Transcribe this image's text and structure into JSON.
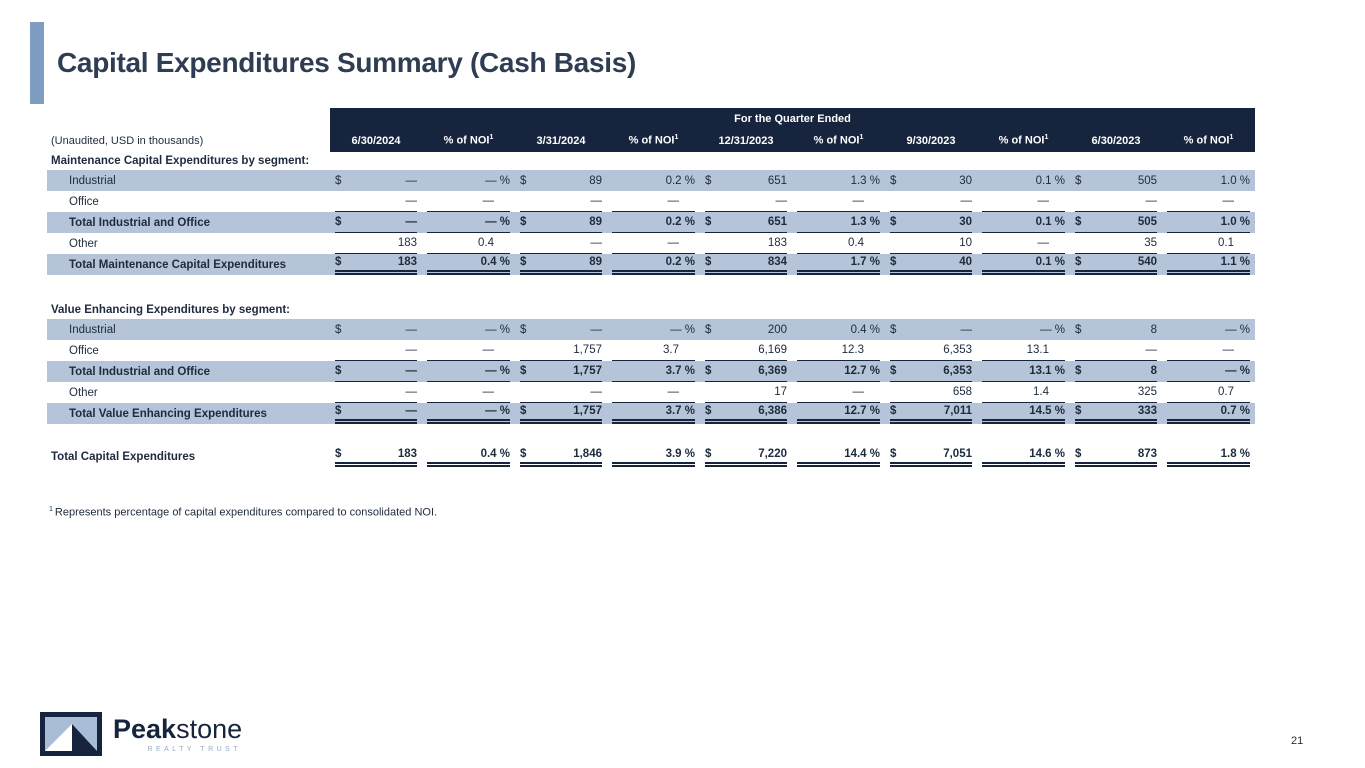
{
  "title": "Capital Expenditures Summary (Cash Basis)",
  "page": {
    "number": "21"
  },
  "colors": {
    "navy": "#16243e",
    "stripe": "#b5c4d9",
    "accent_bar": "#7f9cc1",
    "title_text": "#2e3d52",
    "logo_subtitle": "#93a9c5"
  },
  "footnote": {
    "sup": "1",
    "text": "Represents percentage of capital expenditures compared to consolidated NOI."
  },
  "logo": {
    "brand_bold": "Peak",
    "brand_light": "stone",
    "subtitle": "REALTY TRUST",
    "mark": "mountain-logo-icon"
  },
  "table": {
    "unaudited_note": "(Unaudited, USD in thousands)",
    "quarter_banner": "For the Quarter Ended",
    "columns": [
      {
        "label": "6/30/2024"
      },
      {
        "label": "% of NOI",
        "sup": "1"
      },
      {
        "label": "3/31/2024"
      },
      {
        "label": "% of NOI",
        "sup": "1"
      },
      {
        "label": "12/31/2023"
      },
      {
        "label": "% of NOI",
        "sup": "1"
      },
      {
        "label": "9/30/2023"
      },
      {
        "label": "% of NOI",
        "sup": "1"
      },
      {
        "label": "6/30/2023"
      },
      {
        "label": "% of NOI",
        "sup": "1"
      }
    ],
    "sections": [
      {
        "heading": "Maintenance Capital Expenditures by segment:",
        "rows": [
          {
            "label": "Industrial",
            "indent": true,
            "shaded": true,
            "bold": false,
            "dollar": true,
            "underline": "none",
            "values": [
              "—",
              "—",
              "89",
              "0.2",
              "651",
              "1.3",
              "30",
              "0.1",
              "505",
              "1.0"
            ]
          },
          {
            "label": "Office",
            "indent": true,
            "shaded": false,
            "bold": false,
            "dollar": false,
            "underline": "single",
            "values": [
              "—",
              "—",
              "—",
              "—",
              "—",
              "—",
              "—",
              "—",
              "—",
              "—"
            ]
          },
          {
            "label": "Total Industrial and Office",
            "indent": true,
            "shaded": true,
            "bold": true,
            "dollar": true,
            "underline": "single",
            "values": [
              "—",
              "—",
              "89",
              "0.2",
              "651",
              "1.3",
              "30",
              "0.1",
              "505",
              "1.0"
            ]
          },
          {
            "label": "Other",
            "indent": true,
            "shaded": false,
            "bold": false,
            "dollar": false,
            "underline": "single",
            "values": [
              "183",
              "0.4",
              "—",
              "—",
              "183",
              "0.4",
              "10",
              "—",
              "35",
              "0.1"
            ]
          },
          {
            "label": "Total Maintenance Capital Expenditures",
            "indent": true,
            "shaded": true,
            "bold": true,
            "dollar": true,
            "underline": "double",
            "values": [
              "183",
              "0.4",
              "89",
              "0.2",
              "834",
              "1.7",
              "40",
              "0.1",
              "540",
              "1.1"
            ]
          }
        ]
      },
      {
        "heading": "Value Enhancing Expenditures by segment:",
        "rows": [
          {
            "label": "Industrial",
            "indent": true,
            "shaded": true,
            "bold": false,
            "dollar": true,
            "underline": "none",
            "values": [
              "—",
              "—",
              "—",
              "—",
              "200",
              "0.4",
              "—",
              "—",
              "8",
              "—"
            ]
          },
          {
            "label": "Office",
            "indent": true,
            "shaded": false,
            "bold": false,
            "dollar": false,
            "underline": "single",
            "values": [
              "—",
              "—",
              "1,757",
              "3.7",
              "6,169",
              "12.3",
              "6,353",
              "13.1",
              "—",
              "—"
            ]
          },
          {
            "label": "Total Industrial and Office",
            "indent": true,
            "shaded": true,
            "bold": true,
            "dollar": true,
            "underline": "single",
            "values": [
              "—",
              "—",
              "1,757",
              "3.7",
              "6,369",
              "12.7",
              "6,353",
              "13.1",
              "8",
              "—"
            ]
          },
          {
            "label": "Other",
            "indent": true,
            "shaded": false,
            "bold": false,
            "dollar": false,
            "underline": "single",
            "values": [
              "—",
              "—",
              "—",
              "—",
              "17",
              "—",
              "658",
              "1.4",
              "325",
              "0.7"
            ]
          },
          {
            "label": "Total Value Enhancing Expenditures",
            "indent": true,
            "shaded": true,
            "bold": true,
            "dollar": true,
            "underline": "double",
            "values": [
              "—",
              "—",
              "1,757",
              "3.7",
              "6,386",
              "12.7",
              "7,011",
              "14.5",
              "333",
              "0.7"
            ]
          }
        ]
      }
    ],
    "grand_total": {
      "label": "Total Capital Expenditures",
      "indent": false,
      "shaded": false,
      "bold": true,
      "dollar": true,
      "underline": "double",
      "values": [
        "183",
        "0.4",
        "1,846",
        "3.9",
        "7,220",
        "14.4",
        "7,051",
        "14.6",
        "873",
        "1.8"
      ]
    }
  }
}
